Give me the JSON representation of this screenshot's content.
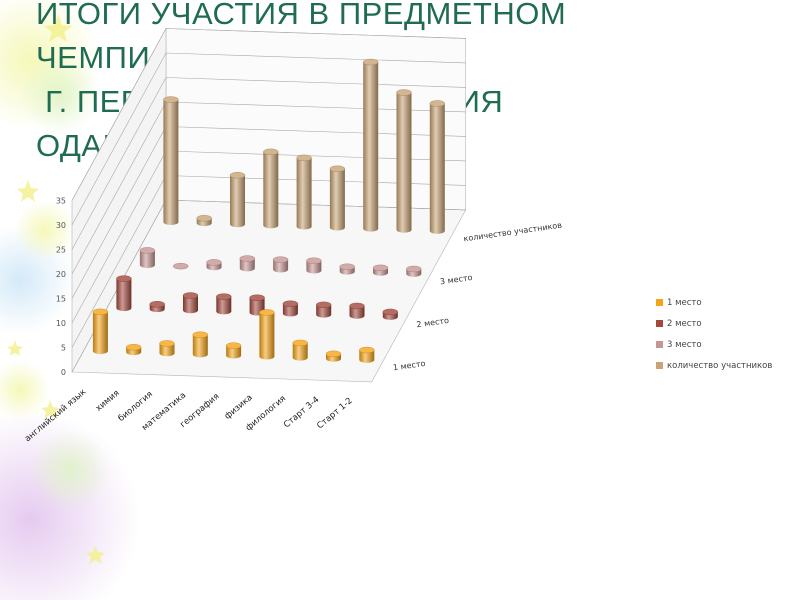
{
  "title_lines": [
    "ИТОГИ УЧАСТИЯ В ПРЕДМЕТНОМ",
    "ЧЕМПИОНАТЕ",
    " Г. ПЕРМЬ ( ЦЕНТР РАЗВИТИЯ",
    "ОДАРЕННОСТИ)"
  ],
  "chart_data": {
    "type": "bar",
    "variant": "3d-cylinder",
    "categories": [
      "английский язык",
      "химия",
      "биология",
      "математика",
      "география",
      "физика",
      "филология",
      "Старт 3-4",
      "Старт 1-2"
    ],
    "ylim": [
      0,
      35
    ],
    "yticks": [
      0,
      5,
      10,
      15,
      20,
      25,
      30,
      35
    ],
    "series": [
      {
        "name": "1 место",
        "color": "#f5a418",
        "values": [
          8,
          1,
          2,
          4,
          2,
          9,
          3,
          1,
          2
        ]
      },
      {
        "name": "2 место",
        "color": "#a2483c",
        "values": [
          6,
          1,
          3,
          3,
          3,
          2,
          2,
          2,
          1
        ]
      },
      {
        "name": "3 место",
        "color": "#c79594",
        "values": [
          3,
          0,
          1,
          2,
          2,
          2,
          1,
          1,
          1
        ]
      },
      {
        "name": "количество участников",
        "color": "#c8a373",
        "values": [
          25,
          1,
          10,
          15,
          14,
          12,
          34,
          28,
          26
        ]
      }
    ],
    "series_axis_labels": [
      "1 место",
      "2 место",
      "3 место",
      "количество участников"
    ],
    "legend": [
      "1 место",
      "2 место",
      "3 место",
      "количество участников"
    ],
    "legend_position": "right",
    "grid": true
  }
}
